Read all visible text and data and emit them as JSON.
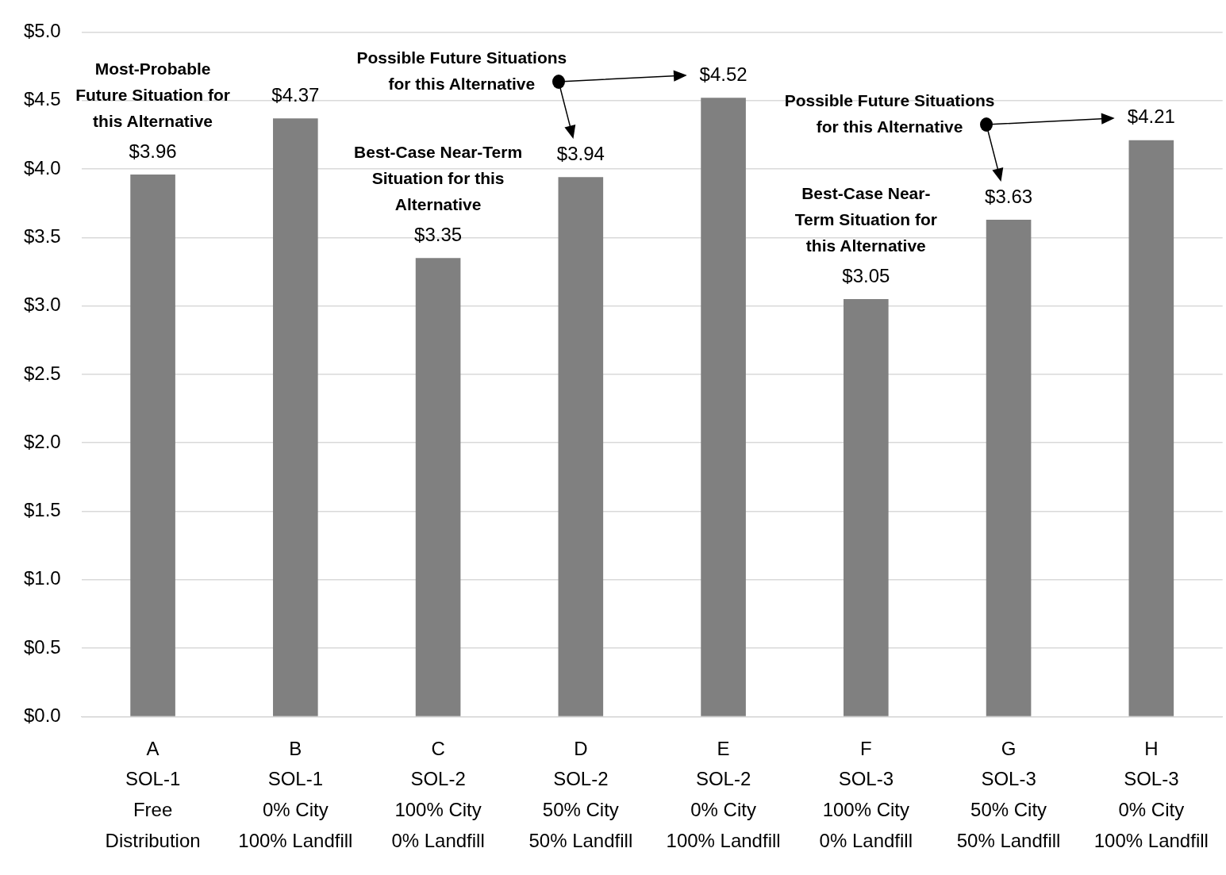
{
  "chart_data": {
    "type": "bar",
    "categories": [
      "A\nSOL-1\nFree\nDistribution",
      "B\nSOL-1\n0% City\n100% Landfill",
      "C\nSOL-2\n100% City\n0% Landfill",
      "D\nSOL-2\n50% City\n50% Landfill",
      "E\nSOL-2\n0% City\n100% Landfill",
      "F\nSOL-3\n100% City\n0% Landfill",
      "G\nSOL-3\n50% City\n50% Landfill",
      "H\nSOL-3\n0% City\n100% Landfill"
    ],
    "values": [
      3.96,
      4.37,
      3.35,
      3.94,
      4.52,
      3.05,
      3.63,
      4.21
    ],
    "value_labels": [
      "$3.96",
      "$4.37",
      "$3.35",
      "$3.94",
      "$4.52",
      "$3.05",
      "$3.63",
      "$4.21"
    ],
    "color": "#808080",
    "ylim": [
      0,
      5
    ],
    "yticks": [
      {
        "value": 0,
        "label": "$0.0"
      },
      {
        "value": 0.5,
        "label": "$0.5"
      },
      {
        "value": 1,
        "label": "$1.0"
      },
      {
        "value": 1.5,
        "label": "$1.5"
      },
      {
        "value": 2,
        "label": "$2.0"
      },
      {
        "value": 2.5,
        "label": "$2.5"
      },
      {
        "value": 3,
        "label": "$3.0"
      },
      {
        "value": 3.5,
        "label": "$3.5"
      },
      {
        "value": 4,
        "label": "$4.0"
      },
      {
        "value": 4.5,
        "label": "$4.5"
      },
      {
        "value": 5,
        "label": "$5.0"
      }
    ],
    "grid": "y",
    "annotations": [
      {
        "text": "Most-Probable\nFuture Situation for\nthis Alternative",
        "x": "A\nSOL-1\nFree\nDistribution",
        "y": 3.96
      },
      {
        "text": "Best-Case Near-Term\nSituation for this\nAlternative",
        "x": "C\nSOL-2\n100% City\n0% Landfill",
        "y": 3.35
      },
      "Possible Future Situations\nfor this Alternative",
      {
        "text": "Best-Case Near-\nTerm Situation for\nthis Alternative",
        "x": "F\nSOL-3\n100% City\n0% Landfill",
        "y": 3.05
      },
      "Possible Future Situations\nfor this Alternative"
    ]
  }
}
